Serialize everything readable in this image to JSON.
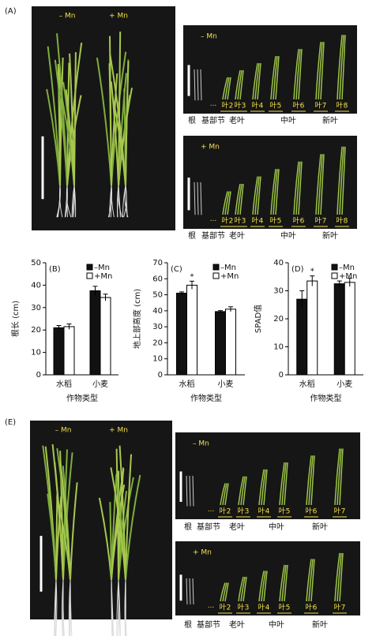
{
  "panel_a": {
    "label": "(A)",
    "photo_labels": [
      "– Mn",
      "+ Mn"
    ],
    "right_photos": [
      {
        "label": "– Mn",
        "ellipsis": "···",
        "leaves": [
          "叶2",
          "叶3",
          "叶4",
          "叶5",
          "叶6",
          "叶7",
          "叶8"
        ],
        "groups": [
          "根",
          "基部节",
          "老叶",
          "中叶",
          "新叶"
        ]
      },
      {
        "label": "+ Mn",
        "ellipsis": "···",
        "leaves": [
          "叶2",
          "叶3",
          "叶4",
          "叶5",
          "叶6",
          "叶7",
          "叶8"
        ],
        "groups": [
          "根",
          "基部节",
          "老叶",
          "中叶",
          "新叶"
        ]
      }
    ]
  },
  "chart_data": [
    {
      "type": "bar",
      "panel": "(B)",
      "y_label": "根长 (cm)",
      "x_label": "作物类型",
      "categories": [
        "水稻",
        "小麦"
      ],
      "series": [
        {
          "name": "–Mn",
          "color": "#111111",
          "values": [
            21,
            37.5
          ],
          "errors": [
            1,
            2
          ]
        },
        {
          "name": "+Mn",
          "color": "#ffffff",
          "values": [
            21.5,
            34.5
          ],
          "errors": [
            1.2,
            1.5
          ]
        }
      ],
      "ylim": [
        0,
        50
      ],
      "yticks": [
        0,
        10,
        20,
        30,
        40,
        50
      ]
    },
    {
      "type": "bar",
      "panel": "(C)",
      "y_label": "地上部高度 (cm)",
      "x_label": "作物类型",
      "categories": [
        "水稻",
        "小麦"
      ],
      "series": [
        {
          "name": "–Mn",
          "color": "#111111",
          "values": [
            51,
            39.5
          ],
          "errors": [
            0.8,
            0.6
          ]
        },
        {
          "name": "+Mn",
          "color": "#ffffff",
          "values": [
            56,
            41
          ],
          "errors": [
            2.5,
            1.5
          ],
          "marks": [
            "*",
            null
          ]
        }
      ],
      "ylim": [
        0,
        70
      ],
      "yticks": [
        0,
        10,
        20,
        30,
        40,
        50,
        60,
        70
      ]
    },
    {
      "type": "bar",
      "panel": "(D)",
      "y_label": "SPAD值",
      "x_label": "作物类型",
      "categories": [
        "水稻",
        "小麦"
      ],
      "series": [
        {
          "name": "–Mn",
          "color": "#111111",
          "values": [
            27,
            32.5
          ],
          "errors": [
            3,
            1
          ]
        },
        {
          "name": "+Mn",
          "color": "#ffffff",
          "values": [
            33.5,
            33
          ],
          "errors": [
            1.8,
            1.5
          ],
          "marks": [
            "*",
            null
          ]
        }
      ],
      "ylim": [
        0,
        40
      ],
      "yticks": [
        0,
        10,
        20,
        30,
        40
      ]
    }
  ],
  "panel_e": {
    "label": "(E)",
    "photo_labels": [
      "– Mn",
      "+ Mn"
    ],
    "right_photos": [
      {
        "label": "– Mn",
        "ellipsis": "···",
        "leaves": [
          "叶2",
          "叶3",
          "叶4",
          "叶5",
          "叶6",
          "叶7"
        ],
        "groups": [
          "根",
          "基部节",
          "老叶",
          "中叶",
          "新叶"
        ]
      },
      {
        "label": "+ Mn",
        "ellipsis": "···",
        "leaves": [
          "叶2",
          "叶3",
          "叶4",
          "叶5",
          "叶6",
          "叶7"
        ],
        "groups": [
          "根",
          "基部节",
          "老叶",
          "中叶",
          "新叶"
        ]
      }
    ]
  }
}
